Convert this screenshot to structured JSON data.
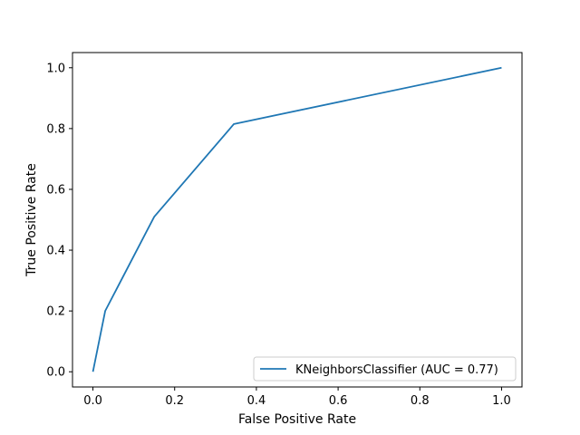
{
  "chart_data": {
    "type": "line",
    "title": "",
    "xlabel": "False Positive Rate",
    "ylabel": "True Positive Rate",
    "xlim": [
      -0.05,
      1.05
    ],
    "ylim": [
      -0.05,
      1.05
    ],
    "xticks": [
      0.0,
      0.2,
      0.4,
      0.6,
      0.8,
      1.0
    ],
    "xtick_labels": [
      "0.0",
      "0.2",
      "0.4",
      "0.6",
      "0.8",
      "1.0"
    ],
    "yticks": [
      0.0,
      0.2,
      0.4,
      0.6,
      0.8,
      1.0
    ],
    "ytick_labels": [
      "0.0",
      "0.2",
      "0.4",
      "0.6",
      "0.8",
      "1.0"
    ],
    "grid": false,
    "legend_position": "lower-right",
    "series": [
      {
        "name": "KNeighborsClassifier (AUC = 0.77)",
        "color": "#1f77b4",
        "x": [
          0.0,
          0.03,
          0.15,
          0.345,
          1.0
        ],
        "y": [
          0.0,
          0.2,
          0.51,
          0.815,
          1.0
        ]
      }
    ]
  }
}
